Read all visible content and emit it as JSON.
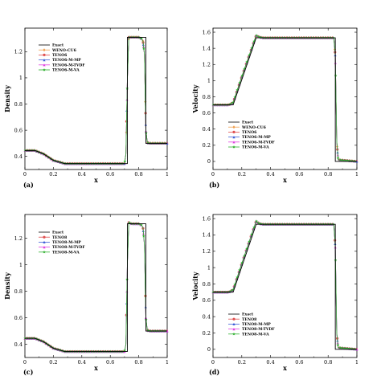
{
  "colors": {
    "Exact": "#000000",
    "WENO-CU6": "#f0a050",
    "TENO6": "#e05050",
    "TENO6-M-MP": "#4060d8",
    "TENO6-M-TVDF": "#e040e0",
    "TENO6-M-VA": "#30b030",
    "TENO8": "#e05050",
    "TENO8-M-MP": "#4060d8",
    "TENO8-M-TVDF": "#e040e0",
    "TENO8-M-VA": "#30b030"
  },
  "chart_data": [
    {
      "id": "a",
      "panel_label": "(a)",
      "type": "line",
      "xlabel": "x",
      "ylabel": "Density",
      "xlim": [
        0,
        1
      ],
      "ylim": [
        0.3,
        1.38
      ],
      "xticks": [
        0,
        0.2,
        0.4,
        0.6,
        0.8,
        1
      ],
      "xtick_labels": [
        "0",
        "0.2",
        "0.4",
        "0.6",
        "0.8",
        "1"
      ],
      "yticks": [
        0.4,
        0.6,
        0.8,
        1,
        1.2
      ],
      "ytick_labels": [
        "0.4",
        "0.6",
        "0.8",
        "1",
        "1.2"
      ],
      "legend": {
        "position": "upper-left",
        "entries": [
          "Exact",
          "WENO-CU6",
          "TENO6",
          "TENO6-M-MP",
          "TENO6-M-TVDF",
          "TENO6-M-VA"
        ]
      },
      "exact": {
        "name": "Exact",
        "x": [
          0,
          0.07,
          0.13,
          0.2,
          0.28,
          0.3,
          0.72,
          0.72,
          0.82,
          0.85,
          0.85,
          1
        ],
        "y": [
          0.445,
          0.445,
          0.42,
          0.37,
          0.345,
          0.345,
          0.345,
          1.31,
          1.31,
          1.31,
          0.5,
          0.5
        ]
      },
      "numerical": {
        "x": [
          0,
          0.07,
          0.13,
          0.2,
          0.28,
          0.3,
          0.7,
          0.71,
          0.72,
          0.73,
          0.75,
          0.8,
          0.82,
          0.83,
          0.84,
          0.85,
          0.86,
          0.87,
          1
        ],
        "y": [
          0.445,
          0.445,
          0.42,
          0.37,
          0.345,
          0.345,
          0.345,
          0.42,
          0.98,
          1.31,
          1.31,
          1.31,
          1.3,
          1.28,
          1.18,
          0.6,
          0.51,
          0.5,
          0.5
        ]
      },
      "series": [
        {
          "name": "WENO-CU6",
          "marker": "diamond"
        },
        {
          "name": "TENO6",
          "marker": "circle"
        },
        {
          "name": "TENO6-M-MP",
          "marker": "triangle"
        },
        {
          "name": "TENO6-M-TVDF",
          "marker": "triangle"
        },
        {
          "name": "TENO6-M-VA",
          "marker": "star"
        }
      ]
    },
    {
      "id": "b",
      "panel_label": "(b)",
      "type": "line",
      "xlabel": "x",
      "ylabel": "Velocity",
      "xlim": [
        0,
        1
      ],
      "ylim": [
        -0.1,
        1.65
      ],
      "xticks": [
        0,
        0.2,
        0.4,
        0.6,
        0.8,
        1
      ],
      "xtick_labels": [
        "0",
        "0.2",
        "0.4",
        "0.6",
        "0.8",
        "1"
      ],
      "yticks": [
        0,
        0.2,
        0.4,
        0.6,
        0.8,
        1,
        1.2,
        1.4,
        1.6
      ],
      "ytick_labels": [
        "0",
        "0.2",
        "0.4",
        "0.6",
        "0.8",
        "1",
        "1.2",
        "1.4",
        "1.6"
      ],
      "legend": {
        "position": "lower-center",
        "entries": [
          "Exact",
          "WENO-CU6",
          "TENO6",
          "TENO6-M-MP",
          "TENO6-M-TVDF",
          "TENO6-M-VA"
        ]
      },
      "exact": {
        "name": "Exact",
        "x": [
          0,
          0.11,
          0.14,
          0.3,
          0.85,
          0.85,
          1
        ],
        "y": [
          0.7,
          0.7,
          0.7,
          1.53,
          1.53,
          0,
          0
        ]
      },
      "numerical": {
        "x": [
          0,
          0.11,
          0.14,
          0.2,
          0.3,
          0.32,
          0.35,
          0.84,
          0.85,
          0.86,
          0.87,
          1
        ],
        "y": [
          0.7,
          0.7,
          0.73,
          1.05,
          1.56,
          1.54,
          1.53,
          1.53,
          1.3,
          0.25,
          0.02,
          0
        ]
      },
      "series": [
        {
          "name": "WENO-CU6",
          "marker": "diamond"
        },
        {
          "name": "TENO6",
          "marker": "circle"
        },
        {
          "name": "TENO6-M-MP",
          "marker": "triangle"
        },
        {
          "name": "TENO6-M-TVDF",
          "marker": "triangle"
        },
        {
          "name": "TENO6-M-VA",
          "marker": "star"
        }
      ]
    },
    {
      "id": "c",
      "panel_label": "(c)",
      "type": "line",
      "xlabel": "x",
      "ylabel": "Density",
      "xlim": [
        0,
        1
      ],
      "ylim": [
        0.3,
        1.38
      ],
      "xticks": [
        0,
        0.2,
        0.4,
        0.6,
        0.8,
        1
      ],
      "xtick_labels": [
        "0",
        "0.2",
        "0.4",
        "0.6",
        "0.8",
        "1"
      ],
      "yticks": [
        0.4,
        0.6,
        0.8,
        1,
        1.2
      ],
      "ytick_labels": [
        "0.4",
        "0.6",
        "0.8",
        "1",
        "1.2"
      ],
      "legend": {
        "position": "upper-left",
        "entries": [
          "Exact",
          "TENO8",
          "TENO8-M-MP",
          "TENO8-M-TVDF",
          "TENO8-M-VA"
        ]
      },
      "exact": {
        "name": "Exact",
        "x": [
          0,
          0.07,
          0.13,
          0.2,
          0.28,
          0.3,
          0.72,
          0.72,
          0.82,
          0.85,
          0.85,
          1
        ],
        "y": [
          0.445,
          0.445,
          0.42,
          0.37,
          0.345,
          0.345,
          0.345,
          1.31,
          1.31,
          1.31,
          0.5,
          0.5
        ]
      },
      "numerical": {
        "x": [
          0,
          0.07,
          0.13,
          0.2,
          0.28,
          0.3,
          0.7,
          0.71,
          0.72,
          0.73,
          0.75,
          0.8,
          0.82,
          0.83,
          0.84,
          0.85,
          0.86,
          0.87,
          1
        ],
        "y": [
          0.445,
          0.445,
          0.42,
          0.37,
          0.345,
          0.345,
          0.345,
          0.4,
          1.0,
          1.32,
          1.31,
          1.31,
          1.3,
          1.28,
          1.15,
          0.6,
          0.51,
          0.5,
          0.5
        ]
      },
      "series": [
        {
          "name": "TENO8",
          "marker": "circle"
        },
        {
          "name": "TENO8-M-MP",
          "marker": "triangle"
        },
        {
          "name": "TENO8-M-TVDF",
          "marker": "triangle"
        },
        {
          "name": "TENO8-M-VA",
          "marker": "star"
        }
      ]
    },
    {
      "id": "d",
      "panel_label": "(d)",
      "type": "line",
      "xlabel": "x",
      "ylabel": "Velocity",
      "xlim": [
        0,
        1
      ],
      "ylim": [
        -0.1,
        1.65
      ],
      "xticks": [
        0,
        0.2,
        0.4,
        0.6,
        0.8,
        1
      ],
      "xtick_labels": [
        "0",
        "0.2",
        "0.4",
        "0.6",
        "0.8",
        "1"
      ],
      "yticks": [
        0,
        0.2,
        0.4,
        0.6,
        0.8,
        1,
        1.2,
        1.4,
        1.6
      ],
      "ytick_labels": [
        "0",
        "0.2",
        "0.4",
        "0.6",
        "0.8",
        "1",
        "1.2",
        "1.4",
        "1.6"
      ],
      "legend": {
        "position": "lower-center",
        "entries": [
          "Exact",
          "TENO8",
          "TENO8-M-MP",
          "TENO8-M-TVDF",
          "TENO8-M-VA"
        ]
      },
      "exact": {
        "name": "Exact",
        "x": [
          0,
          0.11,
          0.14,
          0.3,
          0.85,
          0.85,
          1
        ],
        "y": [
          0.7,
          0.7,
          0.7,
          1.53,
          1.53,
          0,
          0
        ]
      },
      "numerical": {
        "x": [
          0,
          0.11,
          0.14,
          0.2,
          0.3,
          0.32,
          0.35,
          0.84,
          0.85,
          0.86,
          0.87,
          1
        ],
        "y": [
          0.7,
          0.7,
          0.73,
          1.05,
          1.57,
          1.54,
          1.53,
          1.53,
          1.25,
          0.2,
          0.02,
          0
        ]
      },
      "series": [
        {
          "name": "TENO8",
          "marker": "circle"
        },
        {
          "name": "TENO8-M-MP",
          "marker": "triangle"
        },
        {
          "name": "TENO8-M-TVDF",
          "marker": "triangle"
        },
        {
          "name": "TENO8-M-VA",
          "marker": "star"
        }
      ]
    }
  ]
}
